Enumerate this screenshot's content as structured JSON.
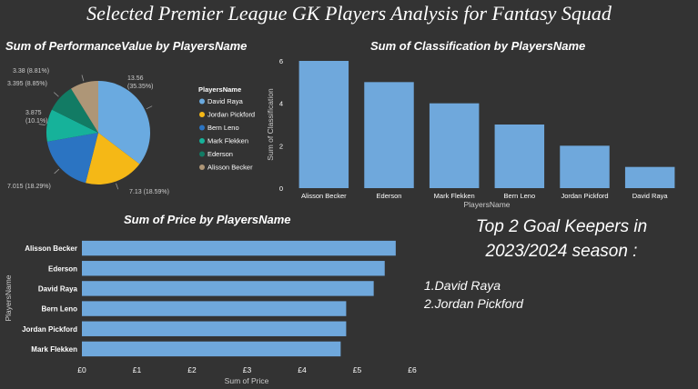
{
  "dashboard": {
    "title": "Selected Premier League GK Players Analysis for Fantasy Squad",
    "note": {
      "heading_line1": "Top 2 Goal Keepers in",
      "heading_line2": "2023/2024 season :",
      "items": [
        "1.David Raya",
        "2.Jordan Pickford"
      ]
    }
  },
  "colors": {
    "background": "#333333",
    "bar": "#6fa8dc",
    "text": "#ffffff",
    "muted_text": "#cccccc"
  },
  "chart_data": [
    {
      "type": "pie",
      "title": "Sum of PerformanceValue by PlayersName",
      "legend_title": "PlayersName",
      "legend_position": "right",
      "slices": [
        {
          "name": "David Raya",
          "value": 13.56,
          "label": "13.56 (35.35%)",
          "color": "#6aaae0"
        },
        {
          "name": "Jordan Pickford",
          "value": 7.13,
          "label": "7.13 (18.59%)",
          "color": "#f5b816"
        },
        {
          "name": "Bern Leno",
          "value": 7.015,
          "label": "7.015 (18.29%)",
          "color": "#2b74c2"
        },
        {
          "name": "Mark Flekken",
          "value": 3.875,
          "label": "3.875 (10.1%)",
          "color": "#16b29a"
        },
        {
          "name": "Ederson",
          "value": 3.395,
          "label": "3.395 (8.85%)",
          "color": "#127b64"
        },
        {
          "name": "Alisson Becker",
          "value": 3.38,
          "label": "3.38 (8.81%)",
          "color": "#ae9677"
        }
      ]
    },
    {
      "type": "bar",
      "title": "Sum of Classification by PlayersName",
      "xlabel": "PlayersName",
      "ylabel": "Sum of Classification",
      "categories": [
        "Alisson Becker",
        "Ederson",
        "Mark Flekken",
        "Bern Leno",
        "Jordan Pickford",
        "David Raya"
      ],
      "values": [
        6,
        5,
        4,
        3,
        2,
        1
      ],
      "ylim": [
        0,
        6
      ],
      "yticks": [
        "0",
        "2",
        "4",
        "6"
      ],
      "grid": false
    },
    {
      "type": "bar",
      "orientation": "horizontal",
      "title": "Sum of Price by PlayersName",
      "xlabel": "Sum of Price",
      "ylabel": "PlayersName",
      "categories": [
        "Alisson Becker",
        "Ederson",
        "David Raya",
        "Bern Leno",
        "Jordan Pickford",
        "Mark Flekken"
      ],
      "values": [
        5.7,
        5.5,
        5.3,
        4.8,
        4.8,
        4.7
      ],
      "xlim": [
        0,
        6
      ],
      "xticks": [
        "£0",
        "£1",
        "£2",
        "£3",
        "£4",
        "£5",
        "£6"
      ],
      "grid": false
    }
  ]
}
